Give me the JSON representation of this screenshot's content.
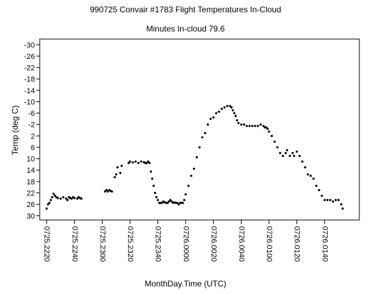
{
  "chart_data": {
    "type": "scatter",
    "title": "990725 Convair #1783 Flight Temperatures In-Cloud",
    "subtitle": "Minutes In-cloud 79.6",
    "xlabel": "MonthDay.Time (UTC)",
    "ylabel": "Temp (deg C)",
    "y_axis_inverted": true,
    "ylim": [
      -32,
      31.5
    ],
    "xlim_minutes_relative_to_0725_2220": [
      -5,
      225
    ],
    "x_ticks": [
      "0725.2220",
      "0725.2240",
      "0725.2300",
      "0725.2320",
      "0725.2340",
      "0726.0000",
      "0726.0020",
      "0726.0040",
      "0726.0100",
      "0726.0120",
      "0726.0140"
    ],
    "y_ticks": [
      -30,
      -26,
      -22,
      -18,
      -14,
      -10,
      -6,
      -2,
      2,
      6,
      10,
      14,
      18,
      22,
      26,
      30
    ],
    "grid": false,
    "legend": "none",
    "marker_color": "#000000",
    "series": [
      {
        "x": [
          "0725.2220",
          "0725.2221",
          "0725.2222",
          "0725.2223",
          "0725.2224",
          "0725.2225",
          "0725.2226",
          "0725.2227",
          "0725.2228",
          "0725.2230",
          "0725.2232",
          "0725.2234",
          "0725.2235",
          "0725.2236",
          "0725.2237",
          "0725.2238",
          "0725.2239",
          "0725.2240",
          "0725.2242",
          "0725.2243",
          "0725.2244",
          "0725.2245",
          "0725.2302",
          "0725.2303",
          "0725.2304",
          "0725.2305",
          "0725.2306",
          "0725.2307",
          "0725.2309",
          "0725.2310",
          "0725.2311",
          "0725.2313",
          "0725.2314",
          "0725.2319",
          "0725.2320",
          "0725.2322",
          "0725.2324",
          "0725.2326",
          "0725.2328",
          "0725.2330",
          "0725.2331",
          "0725.2332",
          "0725.2333",
          "0725.2334",
          "0725.2335",
          "0725.2336",
          "0725.2337",
          "0725.2338",
          "0725.2339",
          "0725.2340",
          "0725.2341",
          "0725.2342",
          "0725.2343",
          "0725.2344",
          "0725.2345",
          "0725.2346",
          "0725.2347",
          "0725.2348",
          "0725.2349",
          "0725.2350",
          "0725.2351",
          "0725.2352",
          "0725.2353",
          "0725.2354",
          "0725.2355",
          "0725.2356",
          "0725.2357",
          "0725.2358",
          "0725.2359",
          "0726.0000",
          "0726.0002",
          "0726.0004",
          "0726.0006",
          "0726.0008",
          "0726.0010",
          "0726.0012",
          "0726.0014",
          "0726.0016",
          "0726.0018",
          "0726.0020",
          "0726.0022",
          "0726.0024",
          "0726.0026",
          "0726.0028",
          "0726.0030",
          "0726.0032",
          "0726.0033",
          "0726.0034",
          "0726.0035",
          "0726.0036",
          "0726.0037",
          "0726.0038",
          "0726.0040",
          "0726.0042",
          "0726.0044",
          "0726.0046",
          "0726.0048",
          "0726.0050",
          "0726.0052",
          "0726.0054",
          "0726.0056",
          "0726.0057",
          "0726.0058",
          "0726.0059",
          "0726.0100",
          "0726.0102",
          "0726.0104",
          "0726.0106",
          "0726.0108",
          "0726.0110",
          "0726.0112",
          "0726.0113",
          "0726.0115",
          "0726.0117",
          "0726.0118",
          "0726.0120",
          "0726.0122",
          "0726.0124",
          "0726.0126",
          "0726.0128",
          "0726.0130",
          "0726.0132",
          "0726.0134",
          "0726.0136",
          "0726.0138",
          "0726.0140",
          "0726.0142",
          "0726.0144",
          "0726.0146",
          "0726.0148",
          "0726.0150",
          "0726.0152",
          "0726.0153"
        ],
        "y": [
          27.5,
          26,
          25.5,
          24.5,
          23.5,
          22.3,
          23,
          23.5,
          23.8,
          24,
          23.5,
          24,
          24.5,
          23.5,
          23.8,
          24,
          23.5,
          23.8,
          24,
          23.5,
          23.8,
          24,
          21.5,
          21,
          21.5,
          21,
          21.3,
          21.5,
          16.5,
          15.5,
          13,
          15,
          12.5,
          11.5,
          11,
          11.3,
          11,
          11.5,
          11,
          11.2,
          11.5,
          11.5,
          11,
          11.5,
          14.5,
          17,
          19.5,
          22,
          23.5,
          24.5,
          25.5,
          25.5,
          25.5,
          25,
          25.3,
          25.5,
          25.5,
          25,
          24.5,
          25,
          25.5,
          25.3,
          25.5,
          25.5,
          26,
          25.5,
          25.5,
          25.5,
          24.5,
          22.5,
          19.5,
          16,
          13.5,
          9.5,
          6,
          2.5,
          1,
          -2,
          -4,
          -4.5,
          -6,
          -6.5,
          -7.5,
          -8,
          -8.5,
          -8.5,
          -8,
          -7,
          -6,
          -5,
          -3.5,
          -2.5,
          -2,
          -2,
          -1.5,
          -1.5,
          -1.5,
          -1.5,
          -1.5,
          -2,
          -1.5,
          -1,
          -1,
          -0.5,
          0.5,
          2,
          4,
          6,
          8,
          9,
          8,
          7,
          9,
          8,
          9,
          7.5,
          9,
          11,
          13,
          15.5,
          16,
          17,
          19.5,
          21,
          23,
          24.5,
          24.5,
          24.5,
          25,
          24.5,
          24.5,
          26,
          27.5
        ]
      }
    ]
  }
}
